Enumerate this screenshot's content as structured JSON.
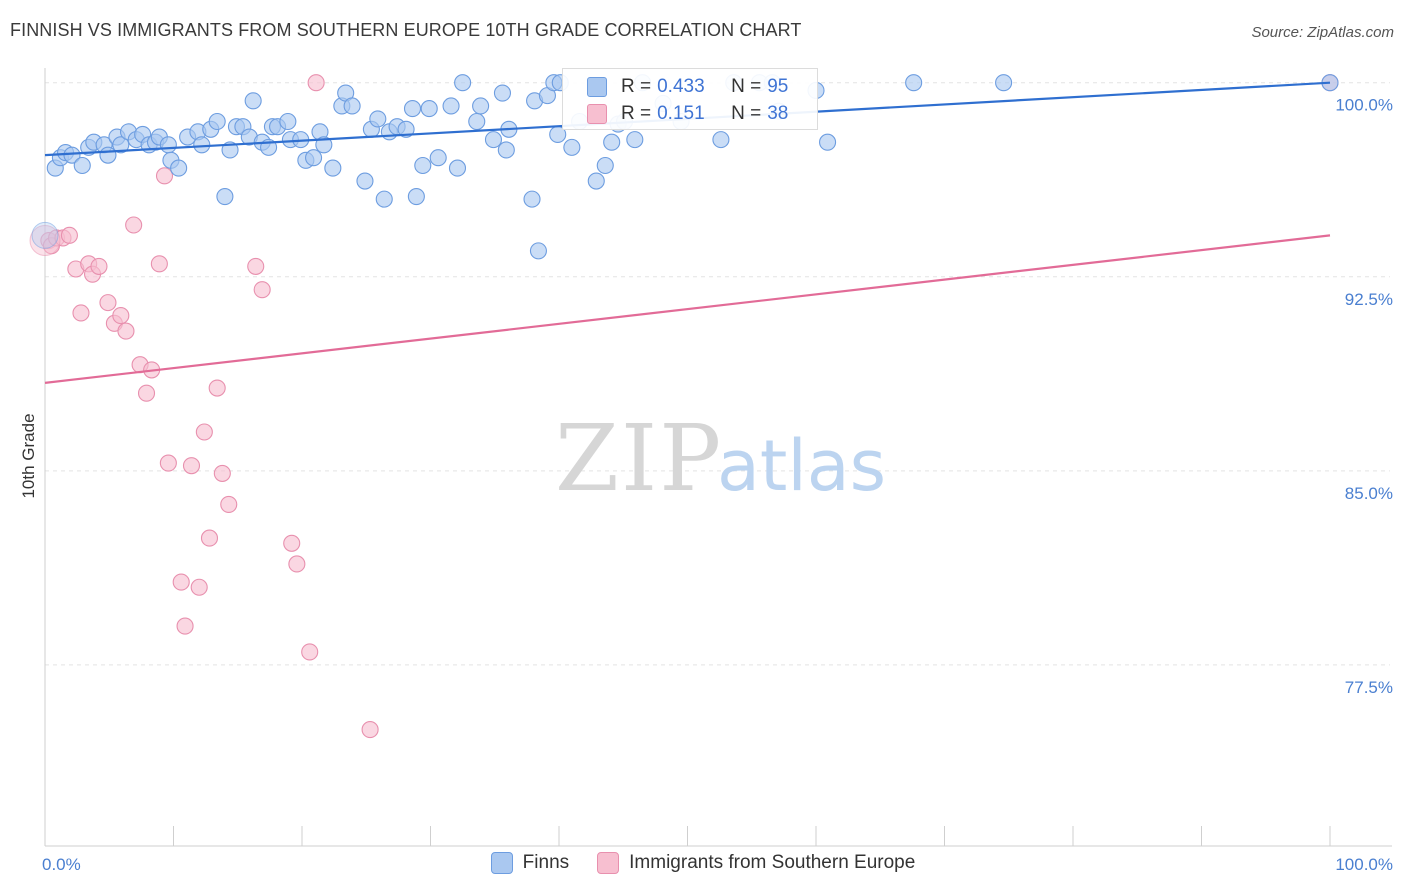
{
  "title": "FINNISH VS IMMIGRANTS FROM SOUTHERN EUROPE 10TH GRADE CORRELATION CHART",
  "source": "Source: ZipAtlas.com",
  "watermark": {
    "zip": "ZIP",
    "atlas": "atlas"
  },
  "legend": {
    "r_label": "R =",
    "n_label": "N =",
    "items": [
      {
        "r": "0.433",
        "n": "95"
      },
      {
        "r": "0.151",
        "n": "38"
      }
    ]
  },
  "colors": {
    "finns_fill": "#aac8f0",
    "finns_stroke": "#6d9de0",
    "finns_line": "#2f6fd0",
    "immig_fill": "#f7bfd0",
    "immig_stroke": "#e890ae",
    "immig_line": "#e26b97",
    "tick_text": "#4a7fd0"
  },
  "chart_data": {
    "type": "scatter",
    "title": "FINNISH VS IMMIGRANTS FROM SOUTHERN EUROPE 10TH GRADE CORRELATION CHART",
    "xlabel": "",
    "ylabel": "10th Grade",
    "xlim": [
      0,
      100
    ],
    "ylim": [
      70.5,
      100.8
    ],
    "x_tick_labels": [
      "0.0%",
      "100.0%"
    ],
    "y_ticks": [
      77.5,
      85.0,
      92.5,
      100.0
    ],
    "y_tick_labels": [
      "77.5%",
      "85.0%",
      "92.5%",
      "100.0%"
    ],
    "grid": true,
    "legend_position": "top-center",
    "series": [
      {
        "name": "Finns",
        "r": 0.433,
        "n": 95,
        "trend": [
          [
            0,
            97.2
          ],
          [
            100,
            100.0
          ]
        ],
        "points": [
          [
            0.8,
            96.7
          ],
          [
            1.2,
            97.1
          ],
          [
            1.6,
            97.3
          ],
          [
            2.1,
            97.2
          ],
          [
            2.9,
            96.8
          ],
          [
            3.4,
            97.5
          ],
          [
            3.8,
            97.7
          ],
          [
            4.6,
            97.6
          ],
          [
            4.9,
            97.2
          ],
          [
            5.6,
            97.9
          ],
          [
            5.9,
            97.6
          ],
          [
            6.5,
            98.1
          ],
          [
            7.1,
            97.8
          ],
          [
            7.6,
            98.0
          ],
          [
            8.1,
            97.6
          ],
          [
            8.6,
            97.7
          ],
          [
            8.9,
            97.9
          ],
          [
            9.6,
            97.6
          ],
          [
            9.8,
            97.0
          ],
          [
            10.4,
            96.7
          ],
          [
            11.1,
            97.9
          ],
          [
            11.9,
            98.1
          ],
          [
            12.2,
            97.6
          ],
          [
            12.9,
            98.2
          ],
          [
            13.4,
            98.5
          ],
          [
            14.0,
            95.6
          ],
          [
            14.4,
            97.4
          ],
          [
            14.9,
            98.3
          ],
          [
            15.4,
            98.3
          ],
          [
            15.9,
            97.9
          ],
          [
            16.2,
            99.3
          ],
          [
            16.9,
            97.7
          ],
          [
            17.4,
            97.5
          ],
          [
            17.7,
            98.3
          ],
          [
            18.1,
            98.3
          ],
          [
            18.9,
            98.5
          ],
          [
            19.1,
            97.8
          ],
          [
            19.9,
            97.8
          ],
          [
            20.3,
            97.0
          ],
          [
            20.9,
            97.1
          ],
          [
            21.4,
            98.1
          ],
          [
            21.7,
            97.6
          ],
          [
            22.4,
            96.7
          ],
          [
            23.1,
            99.1
          ],
          [
            23.4,
            99.6
          ],
          [
            23.9,
            99.1
          ],
          [
            24.9,
            96.2
          ],
          [
            25.4,
            98.2
          ],
          [
            25.9,
            98.6
          ],
          [
            26.4,
            95.5
          ],
          [
            26.8,
            98.1
          ],
          [
            27.4,
            98.3
          ],
          [
            28.1,
            98.2
          ],
          [
            28.6,
            99.0
          ],
          [
            28.9,
            95.6
          ],
          [
            29.4,
            96.8
          ],
          [
            29.9,
            99.0
          ],
          [
            30.6,
            97.1
          ],
          [
            31.6,
            99.1
          ],
          [
            32.1,
            96.7
          ],
          [
            32.5,
            100.0
          ],
          [
            33.6,
            98.5
          ],
          [
            33.9,
            99.1
          ],
          [
            34.9,
            97.8
          ],
          [
            35.6,
            99.6
          ],
          [
            35.9,
            97.4
          ],
          [
            36.1,
            98.2
          ],
          [
            37.9,
            95.5
          ],
          [
            38.1,
            99.3
          ],
          [
            38.4,
            93.5
          ],
          [
            39.1,
            99.5
          ],
          [
            39.6,
            100.0
          ],
          [
            39.9,
            98.0
          ],
          [
            40.1,
            100.0
          ],
          [
            41.0,
            97.5
          ],
          [
            41.6,
            98.5
          ],
          [
            42.9,
            96.2
          ],
          [
            43.6,
            96.8
          ],
          [
            44.1,
            97.7
          ],
          [
            44.6,
            98.4
          ],
          [
            45.1,
            98.5
          ],
          [
            45.9,
            97.8
          ],
          [
            46.5,
            100.0
          ],
          [
            48.1,
            99.2
          ],
          [
            49.5,
            98.5
          ],
          [
            52.6,
            97.8
          ],
          [
            53.6,
            100.0
          ],
          [
            55.6,
            100.0
          ],
          [
            56.6,
            100.0
          ],
          [
            57.1,
            98.9
          ],
          [
            60.0,
            99.7
          ],
          [
            60.9,
            97.7
          ],
          [
            67.6,
            100.0
          ],
          [
            74.6,
            100.0
          ],
          [
            100.0,
            100.0
          ]
        ]
      },
      {
        "name": "Immigrants from Southern Europe",
        "r": 0.151,
        "n": 38,
        "trend": [
          [
            0,
            88.4
          ],
          [
            100,
            94.1
          ]
        ],
        "points": [
          [
            0.3,
            93.9
          ],
          [
            0.5,
            93.7
          ],
          [
            0.9,
            94.0
          ],
          [
            1.4,
            94.0
          ],
          [
            1.9,
            94.1
          ],
          [
            2.4,
            92.8
          ],
          [
            2.8,
            91.1
          ],
          [
            3.4,
            93.0
          ],
          [
            3.7,
            92.6
          ],
          [
            4.2,
            92.9
          ],
          [
            4.9,
            91.5
          ],
          [
            5.4,
            90.7
          ],
          [
            5.9,
            91.0
          ],
          [
            6.3,
            90.4
          ],
          [
            6.9,
            94.5
          ],
          [
            7.4,
            89.1
          ],
          [
            7.9,
            88.0
          ],
          [
            8.3,
            88.9
          ],
          [
            8.9,
            93.0
          ],
          [
            9.3,
            96.4
          ],
          [
            9.6,
            85.3
          ],
          [
            10.6,
            80.7
          ],
          [
            10.9,
            79.0
          ],
          [
            11.4,
            85.2
          ],
          [
            12.0,
            80.5
          ],
          [
            12.4,
            86.5
          ],
          [
            12.8,
            82.4
          ],
          [
            13.4,
            88.2
          ],
          [
            13.8,
            84.9
          ],
          [
            14.3,
            83.7
          ],
          [
            16.4,
            92.9
          ],
          [
            16.9,
            92.0
          ],
          [
            19.2,
            82.2
          ],
          [
            19.6,
            81.4
          ],
          [
            20.6,
            78.0
          ],
          [
            21.1,
            100.0
          ],
          [
            25.3,
            75.0
          ],
          [
            100.0,
            100.0
          ]
        ]
      }
    ]
  },
  "bottom_legend": [
    "Finns",
    "Immigrants from Southern Europe"
  ]
}
